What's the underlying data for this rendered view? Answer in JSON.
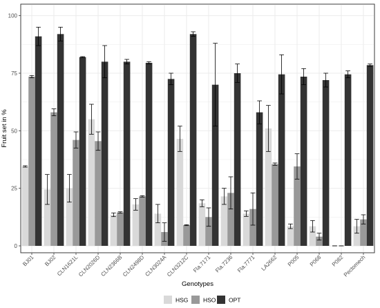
{
  "chart_data": {
    "type": "bar",
    "title": "",
    "xlabel": "Genotypes",
    "ylabel": "Fruit set in %",
    "ylim": [
      0,
      100
    ],
    "yticks": [
      0,
      25,
      50,
      75,
      100
    ],
    "grid": true,
    "legend_position": "bottom",
    "categories": [
      "BJ01",
      "BJ02",
      "CLN1621L",
      "CLN2026D",
      "CLN2366B",
      "CLN2498D",
      "CLN3024A",
      "CLN3212C",
      "Fla.7171",
      "Fla.7236",
      "Fla.7771",
      "LA2662",
      "P005",
      "P068",
      "P082",
      "Pectomech"
    ],
    "series": [
      {
        "name": "HSG",
        "color": "#d9d9d9",
        "values": [
          34.5,
          24.5,
          25,
          55,
          13.5,
          18,
          14,
          46.5,
          18.5,
          21.5,
          14,
          51,
          8.5,
          8.5,
          0,
          8.5
        ],
        "errors": [
          0.3,
          6.5,
          6,
          6.5,
          0.8,
          2.5,
          4,
          5.5,
          1.5,
          3.5,
          1.2,
          10,
          1,
          2.5,
          0,
          3
        ]
      },
      {
        "name": "HSO",
        "color": "#999999",
        "values": [
          73.5,
          58,
          46,
          45.5,
          14.5,
          21.5,
          6,
          9,
          12.5,
          23,
          16,
          35.5,
          34.5,
          4,
          0,
          11.5
        ],
        "errors": [
          0.5,
          1.5,
          3.5,
          4,
          0.3,
          0.3,
          4,
          0.2,
          4,
          7,
          7,
          0.5,
          5.5,
          1.5,
          0,
          2
        ]
      },
      {
        "name": "OPT",
        "color": "#333333",
        "values": [
          91,
          92,
          82,
          80,
          80,
          79.5,
          72.5,
          92,
          70,
          75,
          58,
          74.5,
          73.5,
          72,
          74.5,
          78.5
        ],
        "errors": [
          4,
          3,
          0.2,
          7,
          1,
          0.5,
          2.5,
          1,
          18,
          4,
          5,
          8.5,
          3.5,
          3,
          1.5,
          0.5
        ]
      }
    ]
  }
}
